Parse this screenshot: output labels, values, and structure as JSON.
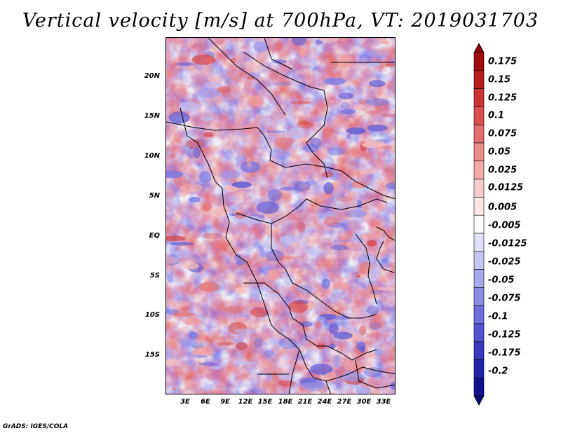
{
  "title": "Vertical velocity [m/s] at 700hPa, VT: 2019031703",
  "footer": "GrADS: IGES/COLA",
  "map": {
    "lat_labels": [
      "20N",
      "15N",
      "10N",
      "5N",
      "EQ",
      "5S",
      "10S",
      "15S"
    ],
    "lat_values": [
      20,
      15,
      10,
      5,
      0,
      -5,
      -10,
      -15
    ],
    "lon_labels": [
      "3E",
      "6E",
      "9E",
      "12E",
      "15E",
      "18E",
      "21E",
      "24E",
      "27E",
      "30E",
      "33E"
    ],
    "lon_values": [
      3,
      6,
      9,
      12,
      15,
      18,
      21,
      24,
      27,
      30,
      33
    ],
    "lon_range": [
      0.5,
      34.5
    ],
    "lat_range": [
      -20,
      25
    ],
    "field": "vertical velocity (700hPa)",
    "background_tint": "#efe9f2"
  },
  "colorbar": {
    "labels": [
      "0.175",
      "0.15",
      "0.125",
      "0.1",
      "0.075",
      "0.05",
      "0.025",
      "0.0125",
      "0.005",
      "-0.005",
      "-0.0125",
      "-0.025",
      "-0.05",
      "-0.075",
      "-0.1",
      "-0.125",
      "-0.175",
      "-0.2"
    ],
    "colors": [
      "#a00f0f",
      "#b81c1c",
      "#cc3333",
      "#dc4f4f",
      "#e56d6d",
      "#ec8b8b",
      "#f3aaaa",
      "#f8cccc",
      "#fce6e6",
      "#ffffff",
      "#e0e0f8",
      "#c6c6f4",
      "#a9a9ee",
      "#8c8ce6",
      "#6e6edc",
      "#5252d0",
      "#3838bc",
      "#2222a8",
      "#12128f"
    ],
    "arrow_top_color": "#8b0000",
    "arrow_bottom_color": "#0a0a7a"
  }
}
